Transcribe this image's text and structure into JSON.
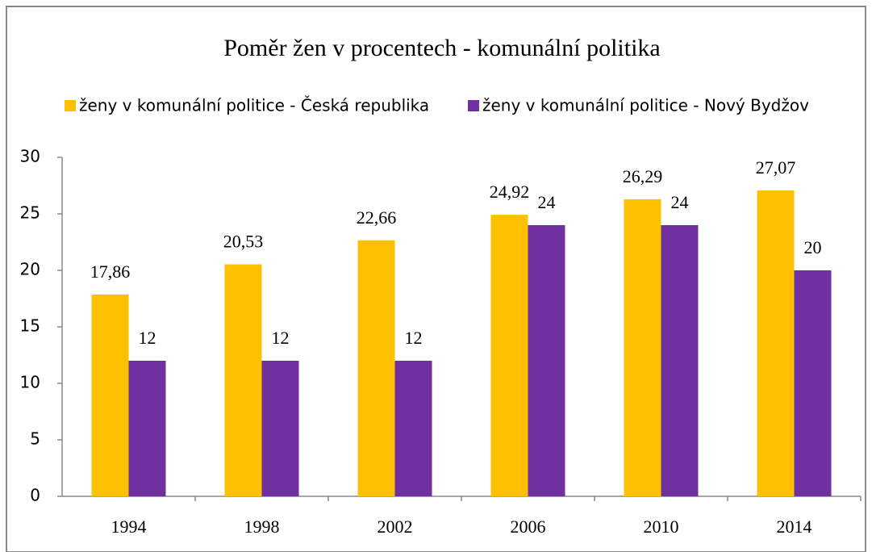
{
  "chart_data": {
    "type": "bar",
    "title": "Poměr žen v procentech - komunální politika",
    "categories": [
      "1994",
      "1998",
      "2002",
      "2006",
      "2010",
      "2014"
    ],
    "series": [
      {
        "name": "ženy v komunální politice - Česká republika",
        "color": "#ffc000",
        "values": [
          17.86,
          20.53,
          22.66,
          24.92,
          26.29,
          27.07
        ],
        "value_labels": [
          "17,86",
          "20,53",
          "22,66",
          "24,92",
          "26,29",
          "27,07"
        ]
      },
      {
        "name": "ženy v komunální politice - Nový Bydžov",
        "color": "#7030a0",
        "values": [
          12,
          12,
          12,
          24,
          24,
          20
        ]
      }
    ],
    "ylim": [
      0,
      30
    ],
    "yticks": [
      0,
      5,
      10,
      15,
      20,
      25,
      30
    ],
    "grid": false,
    "legend": "top"
  }
}
